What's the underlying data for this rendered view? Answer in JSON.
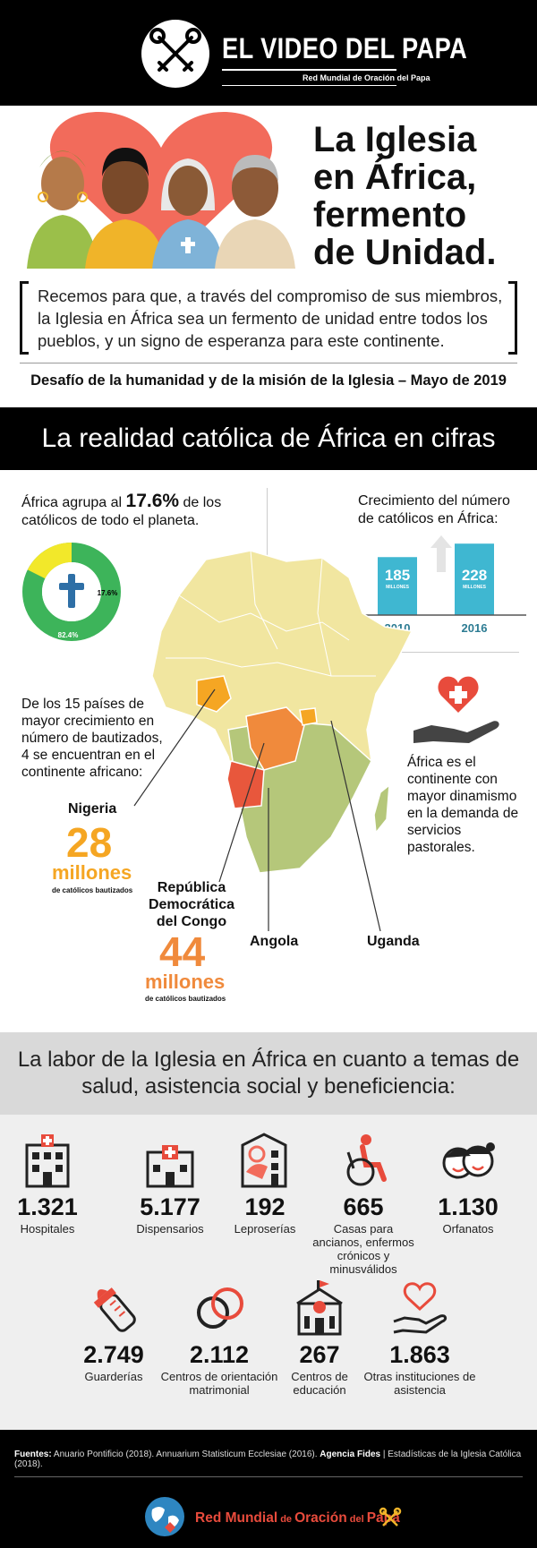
{
  "header": {
    "brand_title": "EL VIDEO DEL PAPA",
    "brand_subtitle": "Red Mundial de Oración del Papa",
    "logo_icon": "crossed-keys-icon"
  },
  "hero": {
    "title_lines": [
      "La Iglesia",
      "en África,",
      "fermento",
      "de Unidad."
    ],
    "quote": "Recemos para que, a través del compromiso de sus miembros, la Iglesia en África sea un fermento de unidad entre todos los pueblos, y un signo de esperanza para este continente.",
    "challenge": "Desafío de la humanidad y de la misión de la Iglesia – Mayo de 2019"
  },
  "section1": {
    "title": "La realidad católica de África en cifras",
    "share_text_pre": "África agrupa al ",
    "share_value": "17.6%",
    "share_text_post": " de los católicos de todo el planeta.",
    "donut": {
      "africa_pct_label": "17.6%",
      "rest_pct_label": "82.4%",
      "africa_fraction": 0.176,
      "colors": {
        "africa": "#f2e82a",
        "rest": "#3db45a"
      }
    },
    "growth_title": "Crecimiento del número de católicos en África:",
    "growth": [
      {
        "year": "2010",
        "value": "185",
        "unit": "MILLONES",
        "value_num": 185
      },
      {
        "year": "2016",
        "value": "228",
        "unit": "MILLONES",
        "value_num": 228
      }
    ],
    "baptism_text": "De los 15 países de mayor crecimiento en número de bautizados, 4 se encuentran en el continente africano:",
    "dynamism_text": "África es el continente con mayor dinamismo en la demanda de servicios pastorales.",
    "nigeria": {
      "label": "Nigeria",
      "number": "28",
      "unit": "millones",
      "sub": "de católicos bautizados"
    },
    "rdc": {
      "label": "República Democrática del Congo",
      "number": "44",
      "unit": "millones",
      "sub": "de católicos bautizados"
    },
    "angola": {
      "label": "Angola"
    },
    "uganda": {
      "label": "Uganda"
    }
  },
  "section2": {
    "title": "La labor de la Iglesia en África  en cuanto a temas de salud, asistencia social y beneficiencia:",
    "items": [
      {
        "icon": "hospital-icon",
        "number": "1.321",
        "label": "Hospitales"
      },
      {
        "icon": "dispensary-icon",
        "number": "5.177",
        "label": "Dispensarios"
      },
      {
        "icon": "leprosarium-icon",
        "number": "192",
        "label": "Leproserías"
      },
      {
        "icon": "wheelchair-icon",
        "number": "665",
        "label": "Casas para ancianos, enfermos crónicos y minusválidos"
      },
      {
        "icon": "children-faces-icon",
        "number": "1.130",
        "label": "Orfanatos"
      },
      {
        "icon": "baby-bottle-icon",
        "number": "2.749",
        "label": "Guarderías"
      },
      {
        "icon": "rings-icon",
        "number": "2.112",
        "label": "Centros de orientación matrimonial"
      },
      {
        "icon": "school-icon",
        "number": "267",
        "label": "Centros de educación"
      },
      {
        "icon": "heart-hand-icon",
        "number": "1.863",
        "label": "Otras instituciones de asistencia"
      }
    ]
  },
  "footer": {
    "sources_label": "Fuentes:",
    "sources_text_1": " Anuario Pontificio (2018). Annuarium Statisticum Ecclesiae (2016). ",
    "sources_bold_2": "Agencia Fides",
    "sources_text_2": " | Estadísticas de la Iglesia Católica (2018).",
    "brand_main": "Red Mundial",
    "brand_de": " de ",
    "brand_mid": "Oración",
    "brand_del": " del ",
    "brand_end": "Papa"
  },
  "colors": {
    "accent_orange": "#f5a623",
    "accent_red": "#e84b3c",
    "teal": "#38b6c9",
    "yellow_map": "#f1e6a0",
    "green_map": "#b5c77a"
  }
}
